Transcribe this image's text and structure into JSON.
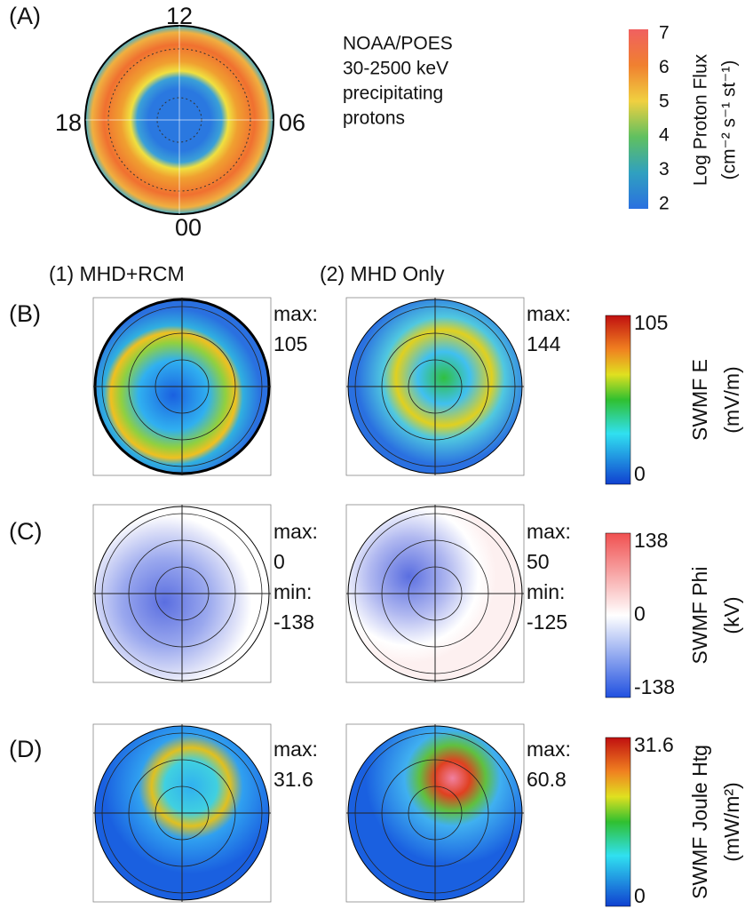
{
  "panel_a": {
    "label": "(A)",
    "clock": {
      "top": "12",
      "left": "18",
      "right": "06",
      "bottom": "00"
    },
    "description": [
      "NOAA/POES",
      "30-2500 keV",
      "precipitating",
      "protons"
    ],
    "colorbar": {
      "ticks": [
        "7",
        "6",
        "5",
        "4",
        "3",
        "2"
      ],
      "title": "Log Proton Flux",
      "unit": "(cm⁻² s⁻¹ st⁻¹)"
    }
  },
  "columns": [
    "(1) MHD+RCM",
    "(2) MHD Only"
  ],
  "rows": [
    {
      "label": "(B)",
      "left": [
        "max:",
        "105"
      ],
      "right": [
        "max:",
        "144"
      ],
      "colorbar": {
        "ticks": [
          "105",
          "0"
        ],
        "title": "SWMF E",
        "unit": "(mV/m)"
      }
    },
    {
      "label": "(C)",
      "left": [
        "max:",
        "0",
        "min:",
        "-138"
      ],
      "right": [
        "max:",
        "50",
        "min:",
        "-125"
      ],
      "colorbar": {
        "ticks": [
          "138",
          "0",
          "-138"
        ],
        "title": "SWMF Phi",
        "unit": "(kV)"
      }
    },
    {
      "label": "(D)",
      "left": [
        "max:",
        "31.6"
      ],
      "right": [
        "max:",
        "60.8"
      ],
      "colorbar": {
        "ticks": [
          "31.6",
          "0"
        ],
        "title": "SWMF Joule Htg",
        "unit": "(mW/m²)"
      }
    }
  ]
}
